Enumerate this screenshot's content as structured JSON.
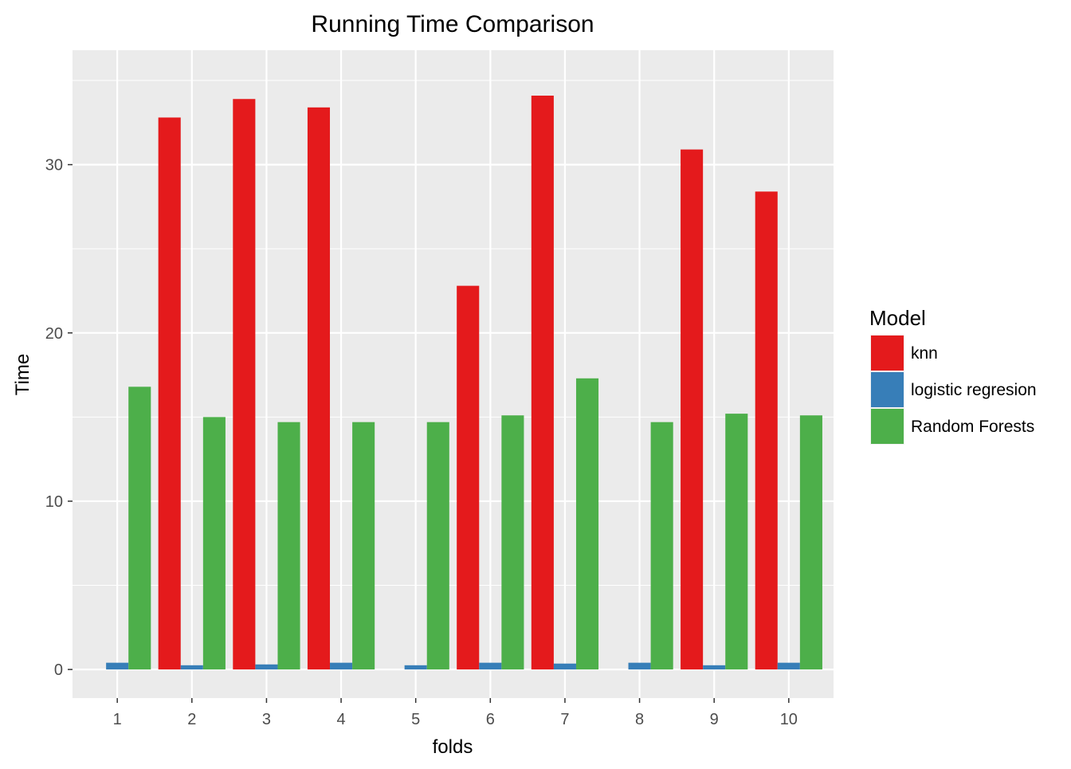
{
  "chart_data": {
    "type": "bar",
    "title": "Running Time Comparison",
    "xlabel": "folds",
    "ylabel": "Time",
    "categories": [
      "1",
      "2",
      "3",
      "4",
      "5",
      "6",
      "7",
      "8",
      "9",
      "10"
    ],
    "ylim": [
      -1.7,
      36.8
    ],
    "yticks": [
      0,
      10,
      20,
      30
    ],
    "grid": true,
    "legend": {
      "title": "Model",
      "position": "right"
    },
    "series": [
      {
        "name": "knn",
        "color": "#E41A1C",
        "values": [
          null,
          32.8,
          33.9,
          33.4,
          null,
          22.8,
          34.1,
          null,
          30.9,
          28.4
        ]
      },
      {
        "name": "logistic regresion",
        "color": "#377EB8",
        "values": [
          0.4,
          0.25,
          0.3,
          0.4,
          0.25,
          0.4,
          0.35,
          0.4,
          0.25,
          0.4
        ]
      },
      {
        "name": "Random Forests",
        "color": "#4DAF4A",
        "values": [
          16.8,
          15.0,
          14.7,
          14.7,
          14.7,
          15.1,
          17.3,
          14.7,
          15.2,
          15.1
        ]
      }
    ],
    "panel_background": "#EBEBEB",
    "grid_color": "#FFFFFF"
  }
}
